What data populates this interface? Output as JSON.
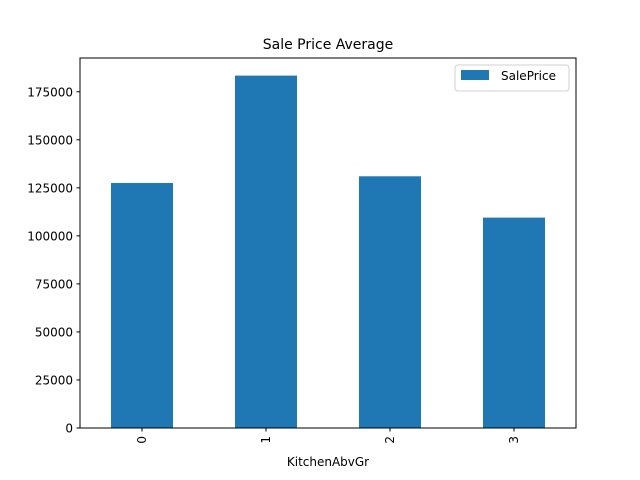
{
  "chart_data": {
    "type": "bar",
    "title": "Sale Price Average",
    "xlabel": "KitchenAbvGr",
    "ylabel": "",
    "categories": [
      "0",
      "1",
      "2",
      "3"
    ],
    "series": [
      {
        "name": "SalePrice",
        "values": [
          127500,
          183400,
          131000,
          109500
        ],
        "color": "#1f77b4"
      }
    ],
    "ylim": [
      0,
      183400
    ],
    "yticks": [
      0,
      25000,
      50000,
      75000,
      100000,
      125000,
      150000,
      175000
    ],
    "grid": false,
    "legend_position": "top-right",
    "xtick_rotation": "vertical"
  }
}
